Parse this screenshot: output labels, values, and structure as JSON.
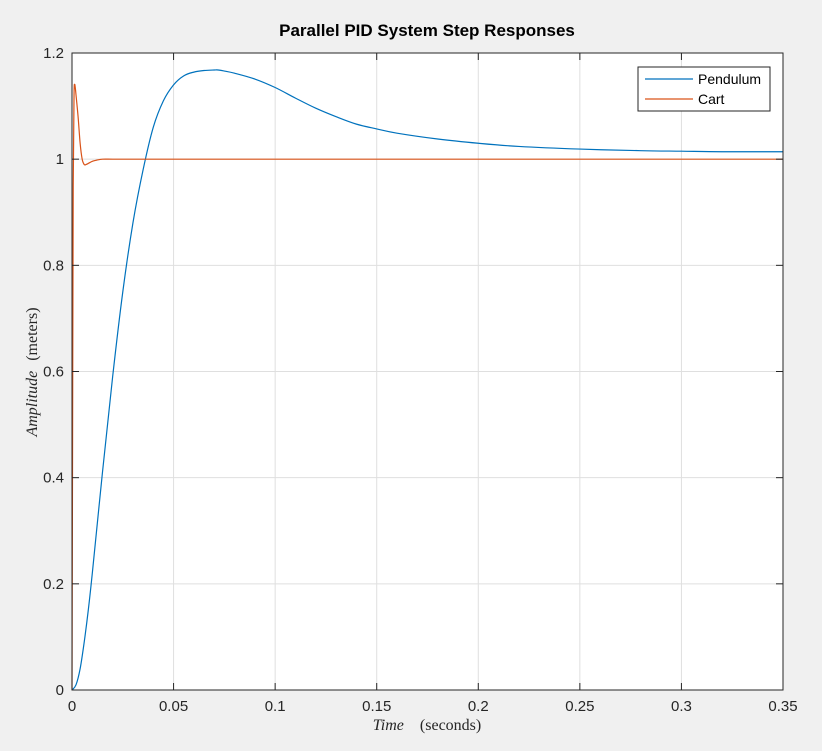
{
  "chart_data": {
    "type": "line",
    "title": "Parallel PID System Step Responses",
    "xlabel": {
      "main": "Time",
      "unit": "(seconds)"
    },
    "ylabel": {
      "main": "Amplitude",
      "unit": "(meters)"
    },
    "xlim": [
      0,
      0.35
    ],
    "ylim": [
      0,
      1.2
    ],
    "xticks": [
      0,
      0.05,
      0.1,
      0.15,
      0.2,
      0.25,
      0.3,
      0.35
    ],
    "xtick_labels": [
      "0",
      "0.05",
      "0.1",
      "0.15",
      "0.2",
      "0.25",
      "0.3",
      "0.35"
    ],
    "yticks": [
      0,
      0.2,
      0.4,
      0.6,
      0.8,
      1.0,
      1.2
    ],
    "ytick_labels": [
      "0",
      "0.2",
      "0.4",
      "0.6",
      "0.8",
      "1",
      "1.2"
    ],
    "grid": true,
    "legend_position": "top-right",
    "series": [
      {
        "name": "Pendulum",
        "color": "#0072bd",
        "x": [
          0,
          0.002,
          0.004,
          0.006,
          0.008,
          0.01,
          0.015,
          0.02,
          0.025,
          0.03,
          0.035,
          0.04,
          0.045,
          0.05,
          0.055,
          0.06,
          0.065,
          0.07,
          0.072,
          0.075,
          0.08,
          0.09,
          0.1,
          0.11,
          0.12,
          0.13,
          0.14,
          0.15,
          0.16,
          0.18,
          0.2,
          0.22,
          0.25,
          0.28,
          0.3,
          0.32,
          0.35
        ],
        "y": [
          0,
          0.01,
          0.04,
          0.09,
          0.15,
          0.22,
          0.41,
          0.59,
          0.75,
          0.88,
          0.98,
          1.06,
          1.11,
          1.14,
          1.157,
          1.164,
          1.167,
          1.168,
          1.168,
          1.166,
          1.162,
          1.151,
          1.135,
          1.115,
          1.096,
          1.08,
          1.066,
          1.057,
          1.049,
          1.038,
          1.03,
          1.024,
          1.019,
          1.016,
          1.015,
          1.014,
          1.014
        ]
      },
      {
        "name": "Cart",
        "color": "#d95319",
        "x": [
          0,
          0.0003,
          0.0006,
          0.001,
          0.0013,
          0.0016,
          0.002,
          0.003,
          0.004,
          0.005,
          0.006,
          0.007,
          0.008,
          0.01,
          0.012,
          0.015,
          0.02,
          0.03,
          0.05,
          0.1,
          0.2,
          0.35
        ],
        "y": [
          0,
          0.5,
          0.95,
          1.12,
          1.14,
          1.135,
          1.12,
          1.08,
          1.03,
          1.0,
          0.99,
          0.99,
          0.992,
          0.996,
          0.998,
          1.0,
          1.0,
          1.0,
          1.0,
          1.0,
          1.0,
          1.0
        ]
      }
    ]
  }
}
